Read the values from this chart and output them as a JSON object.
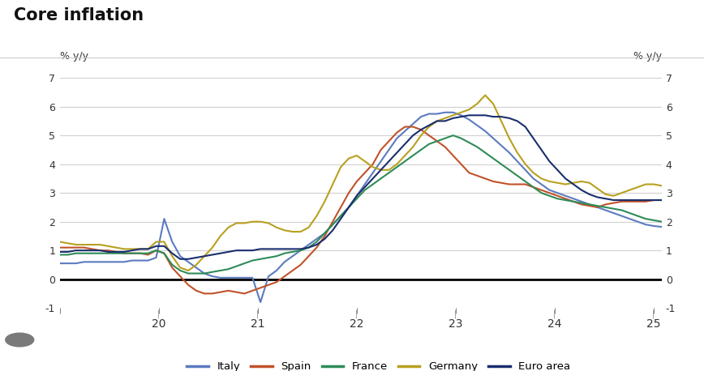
{
  "title": "Core inflation",
  "ylabel_left": "% y/y",
  "ylabel_right": "% y/y",
  "ylim": [
    -1,
    7
  ],
  "yticks": [
    -1,
    0,
    1,
    2,
    3,
    4,
    5,
    6,
    7
  ],
  "background_color": "#ffffff",
  "grid_color": "#d0d0d0",
  "colors": {
    "Italy": "#5b7bbf",
    "Spain": "#c0522a",
    "France": "#2e8b57",
    "Germany": "#b8a020",
    "Euro area": "#1a2e6e"
  },
  "x_start": 2019.0,
  "x_end": 2025.083,
  "xtick_positions": [
    2019.0,
    2020.0,
    2021.0,
    2022.0,
    2023.0,
    2024.0,
    2025.0
  ],
  "xtick_labels": [
    "",
    "20",
    "21",
    "22",
    "23",
    "24",
    "25"
  ],
  "line_width": 1.5,
  "Italy": [
    0.55,
    0.55,
    0.55,
    0.6,
    0.6,
    0.6,
    0.6,
    0.6,
    0.6,
    0.65,
    0.65,
    0.65,
    0.75,
    2.1,
    1.3,
    0.8,
    0.6,
    0.4,
    0.2,
    0.1,
    0.05,
    0.05,
    0.05,
    0.05,
    0.05,
    -0.8,
    0.1,
    0.3,
    0.6,
    0.8,
    1.0,
    1.2,
    1.4,
    1.6,
    1.9,
    2.2,
    2.5,
    2.9,
    3.3,
    3.7,
    4.1,
    4.5,
    4.9,
    5.15,
    5.4,
    5.65,
    5.75,
    5.75,
    5.8,
    5.8,
    5.7,
    5.55,
    5.35,
    5.15,
    4.9,
    4.65,
    4.4,
    4.1,
    3.8,
    3.5,
    3.3,
    3.1,
    3.0,
    2.9,
    2.8,
    2.7,
    2.6,
    2.5,
    2.4,
    2.3,
    2.2,
    2.1,
    2.0,
    1.9,
    1.85,
    1.82
  ],
  "Spain": [
    1.1,
    1.1,
    1.1,
    1.1,
    1.05,
    1.0,
    1.0,
    0.95,
    0.9,
    0.9,
    0.9,
    0.85,
    1.0,
    0.9,
    0.4,
    0.1,
    -0.2,
    -0.4,
    -0.5,
    -0.5,
    -0.45,
    -0.4,
    -0.45,
    -0.5,
    -0.4,
    -0.3,
    -0.2,
    -0.1,
    0.1,
    0.3,
    0.5,
    0.8,
    1.1,
    1.5,
    2.0,
    2.5,
    3.0,
    3.4,
    3.7,
    4.0,
    4.5,
    4.8,
    5.1,
    5.3,
    5.3,
    5.2,
    5.0,
    4.8,
    4.6,
    4.3,
    4.0,
    3.7,
    3.6,
    3.5,
    3.4,
    3.35,
    3.3,
    3.3,
    3.3,
    3.2,
    3.1,
    3.0,
    2.9,
    2.8,
    2.7,
    2.6,
    2.55,
    2.5,
    2.6,
    2.65,
    2.7,
    2.7,
    2.7,
    2.7,
    2.75,
    2.75
  ],
  "France": [
    0.85,
    0.85,
    0.9,
    0.9,
    0.9,
    0.9,
    0.9,
    0.9,
    0.9,
    0.9,
    0.9,
    0.9,
    1.0,
    0.9,
    0.5,
    0.3,
    0.2,
    0.2,
    0.2,
    0.25,
    0.3,
    0.35,
    0.45,
    0.55,
    0.65,
    0.7,
    0.75,
    0.8,
    0.9,
    0.95,
    1.0,
    1.1,
    1.3,
    1.6,
    1.9,
    2.2,
    2.5,
    2.8,
    3.1,
    3.3,
    3.5,
    3.7,
    3.9,
    4.1,
    4.3,
    4.5,
    4.7,
    4.8,
    4.9,
    5.0,
    4.9,
    4.75,
    4.6,
    4.4,
    4.2,
    4.0,
    3.8,
    3.6,
    3.4,
    3.2,
    3.0,
    2.9,
    2.8,
    2.75,
    2.7,
    2.65,
    2.6,
    2.55,
    2.5,
    2.45,
    2.4,
    2.3,
    2.2,
    2.1,
    2.05,
    2.0
  ],
  "Germany": [
    1.3,
    1.25,
    1.2,
    1.2,
    1.2,
    1.2,
    1.15,
    1.1,
    1.05,
    1.05,
    1.05,
    1.05,
    1.3,
    1.3,
    0.8,
    0.4,
    0.3,
    0.5,
    0.8,
    1.1,
    1.5,
    1.8,
    1.95,
    1.95,
    2.0,
    2.0,
    1.95,
    1.8,
    1.7,
    1.65,
    1.65,
    1.8,
    2.2,
    2.7,
    3.3,
    3.9,
    4.2,
    4.3,
    4.1,
    3.9,
    3.8,
    3.8,
    4.0,
    4.3,
    4.6,
    5.0,
    5.3,
    5.5,
    5.6,
    5.7,
    5.8,
    5.9,
    6.1,
    6.4,
    6.1,
    5.5,
    4.9,
    4.4,
    4.0,
    3.7,
    3.5,
    3.4,
    3.35,
    3.3,
    3.35,
    3.4,
    3.35,
    3.15,
    2.95,
    2.9,
    3.0,
    3.1,
    3.2,
    3.3,
    3.3,
    3.25
  ],
  "Euro area": [
    0.95,
    0.95,
    1.0,
    1.0,
    1.0,
    1.0,
    0.95,
    0.95,
    0.95,
    1.0,
    1.05,
    1.05,
    1.15,
    1.15,
    0.9,
    0.7,
    0.7,
    0.75,
    0.8,
    0.85,
    0.9,
    0.95,
    1.0,
    1.0,
    1.0,
    1.05,
    1.05,
    1.05,
    1.05,
    1.05,
    1.05,
    1.1,
    1.2,
    1.4,
    1.7,
    2.1,
    2.5,
    2.9,
    3.2,
    3.5,
    3.8,
    4.1,
    4.4,
    4.7,
    5.0,
    5.2,
    5.35,
    5.5,
    5.5,
    5.6,
    5.65,
    5.7,
    5.7,
    5.7,
    5.65,
    5.65,
    5.6,
    5.5,
    5.3,
    4.9,
    4.5,
    4.1,
    3.8,
    3.5,
    3.3,
    3.1,
    2.95,
    2.85,
    2.8,
    2.75,
    2.75,
    2.75,
    2.75,
    2.75,
    2.75,
    2.75
  ]
}
